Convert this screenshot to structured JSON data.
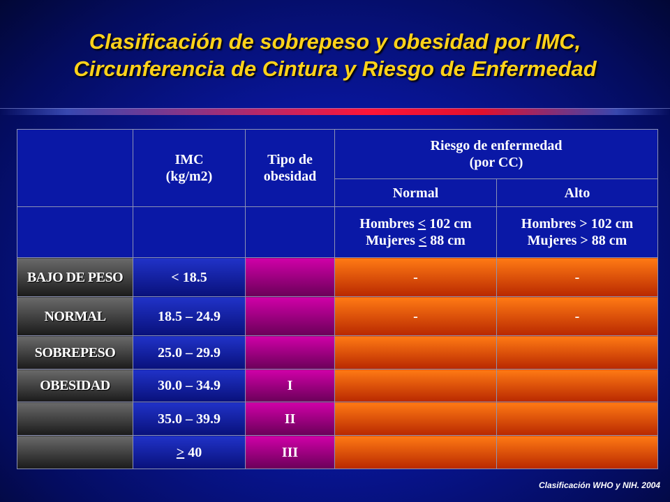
{
  "title": {
    "line1": "Clasificación de sobrepeso y obesidad por IMC,",
    "line2": "Circunferencia de Cintura y Riesgo de Enfermedad"
  },
  "table": {
    "header": {
      "imc_line1": "IMC",
      "imc_line2": "(kg/m2)",
      "tipo_line1": "Tipo de",
      "tipo_line2": "obesidad",
      "riesgo_line1": "Riesgo de enfermedad",
      "riesgo_line2": "(por CC)",
      "normal": "Normal",
      "alto": "Alto"
    },
    "criteria": {
      "normal_men_prefix": "Hombres ",
      "normal_men_symbol": "<",
      "normal_men_value": " 102 cm",
      "normal_women_prefix": "Mujeres ",
      "normal_women_symbol": "<",
      "normal_women_value": " 88 cm",
      "alto_men": "Hombres > 102 cm",
      "alto_women": "Mujeres > 88 cm"
    },
    "rows": [
      {
        "category": "BAJO DE PESO",
        "imc": "< 18.5",
        "tipo": "",
        "normal": "-",
        "alto": "-"
      },
      {
        "category": "NORMAL",
        "imc": "18.5 – 24.9",
        "tipo": "",
        "normal": "-",
        "alto": "-"
      },
      {
        "category": "SOBREPESO",
        "imc": "25.0 – 29.9",
        "tipo": "",
        "normal": "",
        "alto": ""
      },
      {
        "category": "OBESIDAD",
        "imc": "30.0 – 34.9",
        "tipo": "I",
        "normal": "",
        "alto": ""
      },
      {
        "category": "",
        "imc": "35.0 – 39.9",
        "tipo": "II",
        "normal": "",
        "alto": ""
      },
      {
        "category": "",
        "imc_symbol": ">",
        "imc_value": " 40",
        "tipo": "III",
        "normal": "",
        "alto": ""
      }
    ]
  },
  "footnote": "Clasificación WHO y NIH. 2004",
  "colors": {
    "background": "#081596",
    "title": "#ffd21a",
    "divider": "#ff1438",
    "header_cell": "#0a18a6",
    "category_cell": "#3a3a3a",
    "imc_cell": "#1428b4",
    "tipo_cell": "#a0008a",
    "risk_cell": "#e85000"
  }
}
